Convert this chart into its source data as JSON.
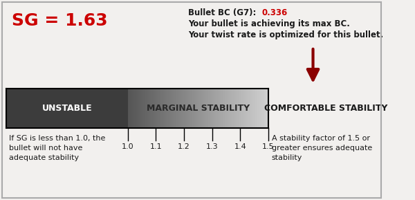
{
  "sg_value": "SG = 1.63",
  "sg_color": "#cc0000",
  "bullet_bc_label": "Bullet BC (G7):",
  "bullet_bc_value": "0.336",
  "bullet_bc_value_color": "#cc0000",
  "line2": "Your bullet is achieving its max BC.",
  "line3": "Your twist rate is optimized for this bullet.",
  "unstable_label": "UNSTABLE",
  "marginal_label": "MARGINAL STABILITY",
  "comfortable_label": "COMFORTABLE STABILITY",
  "unstable_color": "#3c3c3c",
  "arrow_color": "#8b0000",
  "background_color": "#f2f0ee",
  "border_color": "#aaaaaa",
  "text_color_dark": "#1a1a1a",
  "left_note": "If SG is less than 1.0, the\nbullet will not have\nadequate stability",
  "right_note": "A stability factor of 1.5 or\ngreater ensures adequate\nstability",
  "tick_values": [
    1.0,
    1.1,
    1.2,
    1.3,
    1.4,
    1.5
  ],
  "fig_width": 6.0,
  "fig_height": 2.89,
  "dpi": 100
}
